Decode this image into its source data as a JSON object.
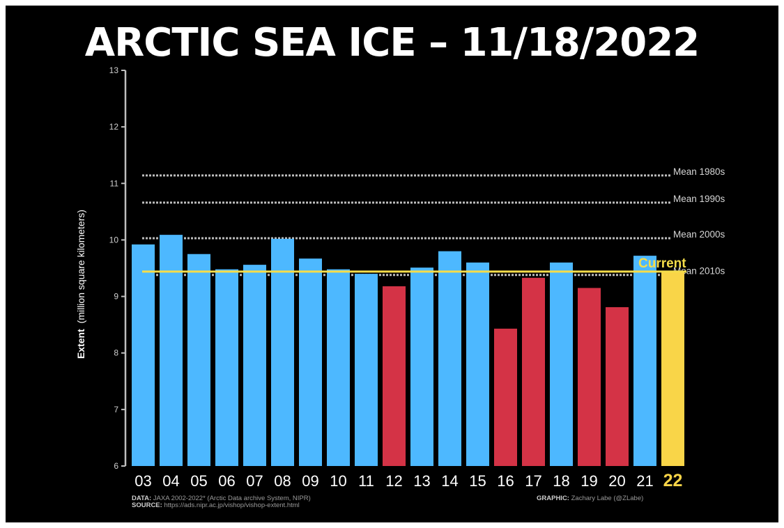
{
  "title": "ARCTIC SEA ICE – 11/18/2022",
  "colors": {
    "background": "#000000",
    "blue_bar": "#4db8ff",
    "red_bar": "#d43346",
    "current_bar": "#f9d548",
    "current_line": "#f5dd4a",
    "mean_line": "#bdbdbd",
    "axis": "#bfbfbf",
    "text": "#ffffff"
  },
  "footer": {
    "data_label": "DATA:",
    "data_text": "JAXA 2002-2022* (Arctic Data archive System, NIPR)",
    "source_label": "SOURCE:",
    "source_text": "https://ads.nipr.ac.jp/vishop/vishop-extent.html",
    "graphic_label": "GRAPHIC:",
    "graphic_text": "Zachary Labe (@ZLabe)"
  },
  "chart_data": {
    "type": "bar",
    "title": "ARCTIC SEA ICE – 11/18/2022",
    "xlabel": "",
    "ylabel": "Extent (million square kilometers)",
    "ylabel_bold": "Extent",
    "ylabel_rest": "(million square kilometers)",
    "ylim": [
      6,
      13
    ],
    "yticks": [
      6,
      7,
      8,
      9,
      10,
      11,
      12,
      13
    ],
    "categories": [
      "03",
      "04",
      "05",
      "06",
      "07",
      "08",
      "09",
      "10",
      "11",
      "12",
      "13",
      "14",
      "15",
      "16",
      "17",
      "18",
      "19",
      "20",
      "21",
      "22"
    ],
    "values": [
      9.92,
      10.09,
      9.75,
      9.48,
      9.56,
      10.02,
      9.67,
      9.48,
      9.4,
      9.18,
      9.51,
      9.8,
      9.6,
      8.43,
      9.33,
      9.6,
      9.15,
      8.81,
      9.72,
      9.44
    ],
    "bar_colors": [
      "blue",
      "blue",
      "blue",
      "blue",
      "blue",
      "blue",
      "blue",
      "blue",
      "blue",
      "red",
      "blue",
      "blue",
      "blue",
      "red",
      "red",
      "blue",
      "red",
      "red",
      "blue",
      "current"
    ],
    "reference_lines": [
      {
        "label": "Mean 1980s",
        "value": 11.14
      },
      {
        "label": "Mean 1990s",
        "value": 10.66
      },
      {
        "label": "Mean 2000s",
        "value": 10.03
      },
      {
        "label": "Mean 2010s",
        "value": 9.38
      }
    ],
    "current_line": {
      "label": "Current",
      "value": 9.44
    },
    "grid": false
  }
}
